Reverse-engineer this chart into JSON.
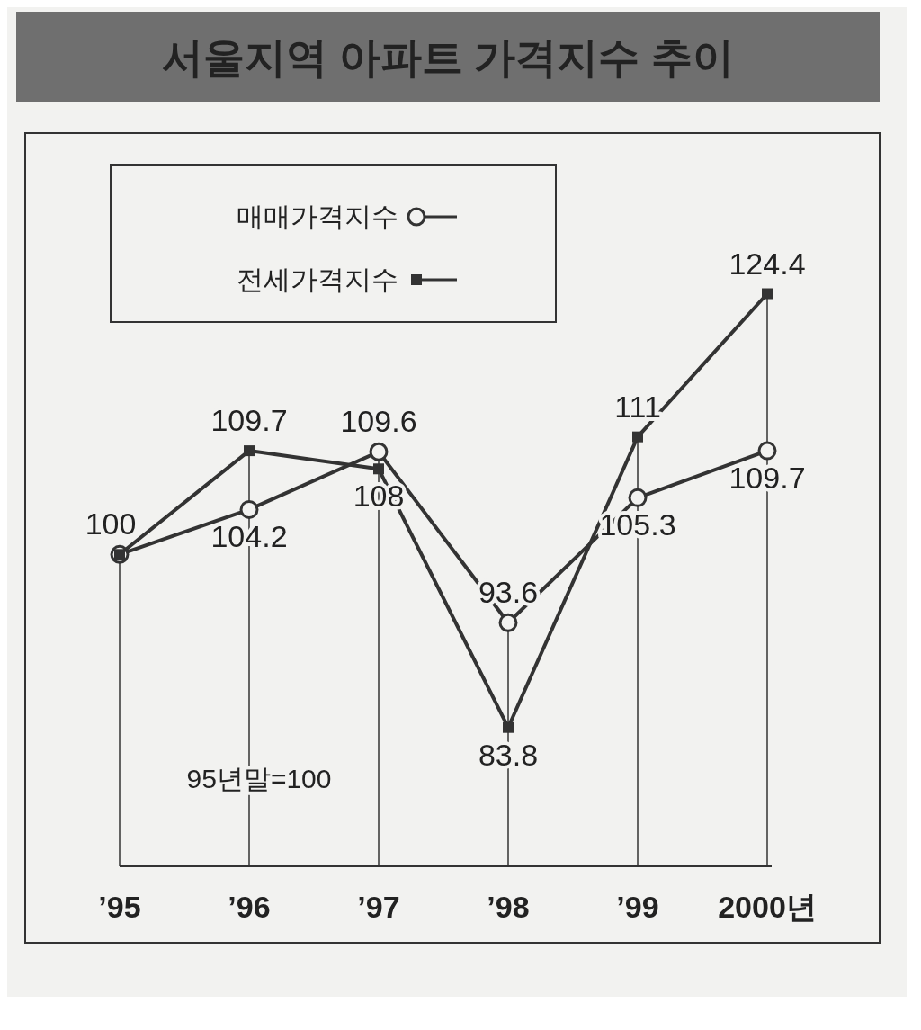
{
  "chart_data": {
    "type": "line",
    "title": "서울지역 아파트 가격지수 추이",
    "categories": [
      "’95",
      "’96",
      "’97",
      "’98",
      "’99",
      "2000년"
    ],
    "series": [
      {
        "name": "매매가격지수",
        "color": "#333333",
        "marker": "circle",
        "values": [
          100,
          104.2,
          109.6,
          93.6,
          105.3,
          109.7
        ],
        "value_labels": [
          "100",
          "104.2",
          "109.6",
          "93.6",
          "105.3",
          "109.7"
        ]
      },
      {
        "name": "전세가격지수",
        "color": "#333333",
        "marker": "square",
        "values": [
          100,
          109.7,
          108,
          83.8,
          111,
          124.4
        ],
        "value_labels": [
          null,
          "109.7",
          "108",
          "83.8",
          "111",
          "124.4"
        ]
      }
    ],
    "tick_labels": "x",
    "grid": "x",
    "legend": "top left",
    "annotations": [
      "95년말=100"
    ]
  }
}
